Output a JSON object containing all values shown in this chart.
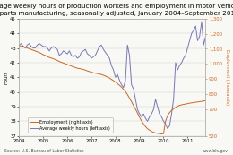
{
  "title": "Average weekly hours of production workers and employment in motor vehicle\nand parts manufacturing, seasonally adjusted, January 2004–September 2011",
  "title_fontsize": 5.2,
  "source_text": "Source: U.S. Bureau of Labor Statistics",
  "url_text": "www.bls.gov",
  "left_ylim": [
    37,
    45
  ],
  "right_ylim": [
    520,
    1300
  ],
  "left_yticks": [
    37,
    38,
    39,
    40,
    41,
    42,
    43,
    44,
    45
  ],
  "right_yticks": [
    520,
    700,
    800,
    900,
    1000,
    1100,
    1200,
    1300
  ],
  "right_ytick_labels": [
    "520",
    "700",
    "800",
    "900",
    "1,000",
    "1,100",
    "1,200",
    "1,300"
  ],
  "xlabel_ticks": [
    2004,
    2005,
    2006,
    2007,
    2008,
    2009,
    2010,
    2011
  ],
  "hours_color": "#7777bb",
  "employment_color": "#cc6622",
  "bg_color": "#f8f8f4",
  "legend_hours": "Average weekly hours (left axis)",
  "legend_employment": "Employment (right axis)",
  "hours_data": [
    43.2,
    43.3,
    43.1,
    43.0,
    43.2,
    43.3,
    43.1,
    43.0,
    43.0,
    43.2,
    43.3,
    43.2,
    43.1,
    43.1,
    43.0,
    42.8,
    43.0,
    43.1,
    43.0,
    42.9,
    42.5,
    42.6,
    42.8,
    42.7,
    42.6,
    42.8,
    42.5,
    42.4,
    42.5,
    42.3,
    42.4,
    42.7,
    42.8,
    42.9,
    42.6,
    42.5,
    42.3,
    42.4,
    42.5,
    42.8,
    43.1,
    43.2,
    42.9,
    42.7,
    42.5,
    42.3,
    41.8,
    41.5,
    41.0,
    41.2,
    40.8,
    40.5,
    40.3,
    40.8,
    43.2,
    42.5,
    40.5,
    40.2,
    39.5,
    38.8,
    38.5,
    38.3,
    38.5,
    38.2,
    38.0,
    38.3,
    38.5,
    38.8,
    39.5,
    39.0,
    38.5,
    38.3,
    38.0,
    37.8,
    37.5,
    37.7,
    38.5,
    39.5,
    42.0,
    41.5,
    41.8,
    42.0,
    42.3,
    42.5,
    43.0,
    43.5,
    44.0,
    44.2,
    44.5,
    43.5,
    43.8,
    44.8,
    43.2,
    43.8,
    43.5,
    43.2,
    43.0,
    42.8,
    42.5,
    42.3,
    42.8
  ],
  "employment_data": [
    1120,
    1118,
    1115,
    1110,
    1105,
    1100,
    1095,
    1090,
    1085,
    1080,
    1075,
    1068,
    1060,
    1055,
    1048,
    1042,
    1038,
    1033,
    1028,
    1022,
    1015,
    1010,
    1005,
    1000,
    995,
    990,
    985,
    980,
    975,
    970,
    968,
    965,
    962,
    958,
    952,
    948,
    944,
    940,
    937,
    935,
    932,
    928,
    924,
    918,
    912,
    905,
    896,
    888,
    878,
    868,
    857,
    845,
    830,
    815,
    795,
    772,
    748,
    722,
    698,
    672,
    645,
    620,
    600,
    582,
    568,
    558,
    550,
    544,
    540,
    537,
    535,
    533,
    535,
    618,
    655,
    675,
    690,
    700,
    710,
    718,
    723,
    727,
    730,
    732,
    735,
    738,
    740,
    742,
    744,
    746,
    748,
    750,
    752,
    755,
    757,
    760,
    762,
    765,
    768,
    770,
    772,
    775,
    778
  ]
}
